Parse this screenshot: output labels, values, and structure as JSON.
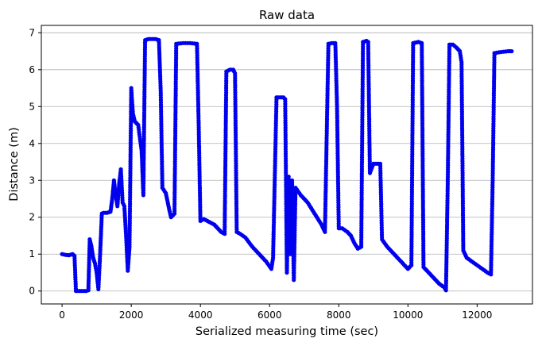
{
  "chart_data": {
    "type": "line",
    "title": "Raw data",
    "xlabel": "Serialized measuring time (sec)",
    "ylabel": "Distance (m)",
    "xlim": [
      -600,
      13600
    ],
    "ylim": [
      -0.35,
      7.2
    ],
    "xticks": [
      0,
      2000,
      4000,
      6000,
      8000,
      10000,
      12000
    ],
    "yticks": [
      0,
      1,
      2,
      3,
      4,
      5,
      6,
      7
    ],
    "xtick_labels": [
      "0",
      "2000",
      "4000",
      "6000",
      "8000",
      "10000",
      "12000"
    ],
    "ytick_labels": [
      "0",
      "1",
      "2",
      "3",
      "4",
      "5",
      "6",
      "7"
    ],
    "grid": "horizontal",
    "marker": "dot",
    "series_color": "#0000ee",
    "series": [
      {
        "points": [
          [
            0,
            1.0
          ],
          [
            100,
            0.98
          ],
          [
            200,
            0.97
          ],
          [
            300,
            1.0
          ],
          [
            360,
            0.95
          ],
          [
            400,
            0.0
          ],
          [
            500,
            0.0
          ],
          [
            600,
            0.0
          ],
          [
            700,
            0.0
          ],
          [
            760,
            0.02
          ],
          [
            800,
            1.4
          ],
          [
            850,
            1.2
          ],
          [
            900,
            0.9
          ],
          [
            950,
            0.75
          ],
          [
            1000,
            0.5
          ],
          [
            1050,
            0.05
          ],
          [
            1100,
            1.0
          ],
          [
            1150,
            2.1
          ],
          [
            1200,
            2.12
          ],
          [
            1300,
            2.12
          ],
          [
            1400,
            2.15
          ],
          [
            1450,
            2.5
          ],
          [
            1500,
            3.0
          ],
          [
            1550,
            2.6
          ],
          [
            1600,
            2.3
          ],
          [
            1650,
            2.9
          ],
          [
            1700,
            3.3
          ],
          [
            1750,
            2.4
          ],
          [
            1800,
            2.3
          ],
          [
            1850,
            1.5
          ],
          [
            1900,
            0.55
          ],
          [
            1950,
            1.2
          ],
          [
            2000,
            5.5
          ],
          [
            2050,
            4.8
          ],
          [
            2100,
            4.6
          ],
          [
            2200,
            4.5
          ],
          [
            2300,
            3.8
          ],
          [
            2350,
            2.6
          ],
          [
            2400,
            6.8
          ],
          [
            2500,
            6.83
          ],
          [
            2600,
            6.83
          ],
          [
            2700,
            6.83
          ],
          [
            2800,
            6.8
          ],
          [
            2850,
            5.5
          ],
          [
            2900,
            2.8
          ],
          [
            3000,
            2.65
          ],
          [
            3100,
            2.2
          ],
          [
            3150,
            2.0
          ],
          [
            3250,
            2.1
          ],
          [
            3300,
            6.7
          ],
          [
            3500,
            6.72
          ],
          [
            3700,
            6.72
          ],
          [
            3900,
            6.7
          ],
          [
            3950,
            4.5
          ],
          [
            4000,
            1.9
          ],
          [
            4100,
            1.95
          ],
          [
            4200,
            1.9
          ],
          [
            4300,
            1.85
          ],
          [
            4400,
            1.8
          ],
          [
            4500,
            1.7
          ],
          [
            4600,
            1.6
          ],
          [
            4700,
            1.55
          ],
          [
            4750,
            5.95
          ],
          [
            4850,
            6.0
          ],
          [
            4950,
            6.0
          ],
          [
            5000,
            5.9
          ],
          [
            5050,
            1.6
          ],
          [
            5150,
            1.55
          ],
          [
            5300,
            1.45
          ],
          [
            5500,
            1.2
          ],
          [
            5700,
            1.0
          ],
          [
            5900,
            0.8
          ],
          [
            6050,
            0.6
          ],
          [
            6100,
            0.9
          ],
          [
            6200,
            5.25
          ],
          [
            6300,
            5.25
          ],
          [
            6400,
            5.25
          ],
          [
            6450,
            5.2
          ],
          [
            6500,
            0.5
          ],
          [
            6550,
            3.1
          ],
          [
            6600,
            1.0
          ],
          [
            6650,
            3.0
          ],
          [
            6700,
            0.3
          ],
          [
            6750,
            2.8
          ],
          [
            6900,
            2.6
          ],
          [
            7100,
            2.4
          ],
          [
            7300,
            2.1
          ],
          [
            7500,
            1.8
          ],
          [
            7600,
            1.6
          ],
          [
            7700,
            6.7
          ],
          [
            7800,
            6.72
          ],
          [
            7900,
            6.72
          ],
          [
            7950,
            5.0
          ],
          [
            8000,
            1.7
          ],
          [
            8100,
            1.7
          ],
          [
            8250,
            1.6
          ],
          [
            8350,
            1.5
          ],
          [
            8450,
            1.3
          ],
          [
            8550,
            1.15
          ],
          [
            8650,
            1.2
          ],
          [
            8700,
            6.75
          ],
          [
            8800,
            6.78
          ],
          [
            8850,
            6.75
          ],
          [
            8900,
            3.2
          ],
          [
            9000,
            3.45
          ],
          [
            9100,
            3.45
          ],
          [
            9200,
            3.45
          ],
          [
            9250,
            1.4
          ],
          [
            9400,
            1.2
          ],
          [
            9600,
            1.0
          ],
          [
            9800,
            0.8
          ],
          [
            10000,
            0.6
          ],
          [
            10100,
            0.7
          ],
          [
            10150,
            6.72
          ],
          [
            10300,
            6.75
          ],
          [
            10400,
            6.72
          ],
          [
            10450,
            0.65
          ],
          [
            10600,
            0.5
          ],
          [
            10750,
            0.35
          ],
          [
            10900,
            0.2
          ],
          [
            11050,
            0.1
          ],
          [
            11100,
            0.02
          ],
          [
            11150,
            2.9
          ],
          [
            11200,
            6.68
          ],
          [
            11300,
            6.68
          ],
          [
            11400,
            6.6
          ],
          [
            11500,
            6.5
          ],
          [
            11550,
            6.2
          ],
          [
            11600,
            1.1
          ],
          [
            11700,
            0.9
          ],
          [
            11850,
            0.8
          ],
          [
            12000,
            0.7
          ],
          [
            12150,
            0.6
          ],
          [
            12300,
            0.5
          ],
          [
            12400,
            0.45
          ],
          [
            12450,
            3.0
          ],
          [
            12500,
            6.45
          ],
          [
            12700,
            6.48
          ],
          [
            12900,
            6.5
          ],
          [
            13000,
            6.5
          ]
        ]
      }
    ]
  }
}
